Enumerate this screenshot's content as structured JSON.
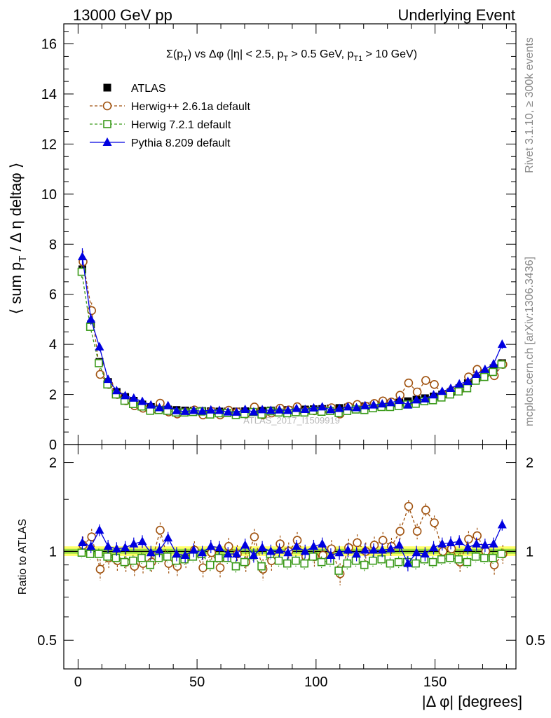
{
  "header": {
    "left": "13000 GeV pp",
    "right": "Underlying Event"
  },
  "side_labels": {
    "rivet": "Rivet 3.1.10, ≥ 300k events",
    "mcplots": "mcplots.cern.ch [arXiv:1306.3436]"
  },
  "watermark": "ATLAS_2017_I1509919",
  "colors": {
    "atlas": "#000000",
    "herwigpp": "#a0520f",
    "herwig7": "#3a9a1a",
    "pythia": "#0000e0",
    "band_outer": "#ffff66",
    "band_inner": "#99dd44"
  },
  "chart_data": [
    {
      "type": "scatter",
      "panel": "main",
      "title": "Σ(p_T) vs Δφ (|η| < 2.5, p_T > 0.5 GeV, p_T1 > 10 GeV)",
      "xlabel": "|Δ φ| [degrees]",
      "ylabel": "⟨ sum p_T / Δ η deltaφ ⟩",
      "xlim": [
        -6,
        184
      ],
      "ylim": [
        0,
        16.8
      ],
      "yticks": [
        0,
        2,
        4,
        6,
        8,
        10,
        12,
        14,
        16
      ],
      "xticks": [
        0,
        50,
        100,
        150
      ],
      "legend_position": "top-left",
      "x": [
        1.8,
        5.4,
        9.0,
        12.6,
        16.2,
        19.8,
        23.4,
        27.0,
        30.6,
        34.2,
        37.8,
        41.4,
        45.0,
        48.6,
        52.2,
        55.8,
        59.4,
        63.0,
        66.6,
        70.2,
        73.8,
        77.4,
        81.0,
        84.6,
        88.2,
        91.8,
        95.4,
        99.0,
        102.6,
        106.2,
        109.8,
        113.4,
        117.0,
        120.6,
        124.2,
        127.8,
        131.4,
        135.0,
        138.6,
        142.2,
        145.8,
        149.4,
        153.0,
        156.6,
        160.2,
        163.8,
        167.4,
        171.0,
        174.6,
        178.2
      ],
      "series": [
        {
          "name": "ATLAS",
          "marker": "square-filled",
          "values": [
            7.0,
            4.8,
            3.3,
            2.5,
            2.1,
            1.9,
            1.75,
            1.6,
            1.5,
            1.45,
            1.4,
            1.38,
            1.36,
            1.35,
            1.34,
            1.33,
            1.32,
            1.32,
            1.32,
            1.33,
            1.34,
            1.35,
            1.36,
            1.37,
            1.38,
            1.39,
            1.4,
            1.41,
            1.42,
            1.44,
            1.46,
            1.48,
            1.5,
            1.53,
            1.56,
            1.6,
            1.64,
            1.68,
            1.73,
            1.79,
            1.85,
            1.92,
            2.0,
            2.1,
            2.25,
            2.45,
            2.65,
            2.85,
            3.05,
            3.25
          ]
        },
        {
          "name": "Herwig++ 2.6.1a default",
          "marker": "circle-open",
          "values": [
            7.3,
            5.35,
            2.8,
            2.4,
            2.0,
            1.75,
            1.55,
            1.45,
            1.38,
            1.65,
            1.3,
            1.22,
            1.3,
            1.38,
            1.18,
            1.33,
            1.18,
            1.37,
            1.3,
            1.22,
            1.5,
            1.18,
            1.26,
            1.45,
            1.38,
            1.51,
            1.34,
            1.35,
            1.38,
            1.47,
            1.22,
            1.52,
            1.6,
            1.53,
            1.64,
            1.74,
            1.7,
            1.97,
            2.46,
            2.1,
            2.56,
            2.4,
            2.0,
            2.15,
            2.2,
            2.7,
            3.0,
            2.85,
            2.75,
            3.2
          ]
        },
        {
          "name": "Herwig 7.2.1 default",
          "marker": "square-open",
          "values": [
            6.9,
            4.7,
            3.25,
            2.4,
            2.0,
            1.75,
            1.62,
            1.52,
            1.35,
            1.38,
            1.35,
            1.28,
            1.28,
            1.3,
            1.32,
            1.2,
            1.25,
            1.26,
            1.18,
            1.22,
            1.3,
            1.2,
            1.33,
            1.28,
            1.25,
            1.29,
            1.28,
            1.35,
            1.31,
            1.34,
            1.26,
            1.34,
            1.4,
            1.38,
            1.45,
            1.5,
            1.5,
            1.54,
            1.6,
            1.63,
            1.73,
            1.77,
            1.88,
            2.0,
            2.12,
            2.25,
            2.55,
            2.7,
            2.9,
            3.2
          ]
        },
        {
          "name": "Pythia 8.209 default",
          "marker": "triangle-filled",
          "values": [
            7.5,
            5.0,
            3.9,
            2.6,
            2.15,
            1.95,
            1.85,
            1.72,
            1.58,
            1.47,
            1.55,
            1.35,
            1.32,
            1.36,
            1.33,
            1.38,
            1.36,
            1.3,
            1.29,
            1.4,
            1.3,
            1.39,
            1.36,
            1.38,
            1.36,
            1.44,
            1.4,
            1.46,
            1.5,
            1.39,
            1.44,
            1.5,
            1.47,
            1.55,
            1.58,
            1.62,
            1.67,
            1.76,
            1.58,
            1.78,
            1.82,
            1.98,
            2.12,
            2.24,
            2.42,
            2.52,
            2.8,
            3.0,
            3.22,
            4.0
          ]
        }
      ]
    },
    {
      "type": "scatter",
      "panel": "ratio",
      "ylabel": "Ratio to ATLAS",
      "xlabel": "|Δ φ| [degrees]",
      "xlim": [
        -6,
        184
      ],
      "ylim": [
        0.4,
        2.3
      ],
      "yticks": [
        0.5,
        1,
        2
      ],
      "ytick_labels": [
        "0.5",
        "1",
        "2"
      ],
      "x": [
        1.8,
        5.4,
        9.0,
        12.6,
        16.2,
        19.8,
        23.4,
        27.0,
        30.6,
        34.2,
        37.8,
        41.4,
        45.0,
        48.6,
        52.2,
        55.8,
        59.4,
        63.0,
        66.6,
        70.2,
        73.8,
        77.4,
        81.0,
        84.6,
        88.2,
        91.8,
        95.4,
        99.0,
        102.6,
        106.2,
        109.8,
        113.4,
        117.0,
        120.6,
        124.2,
        127.8,
        131.4,
        135.0,
        138.6,
        142.2,
        145.8,
        149.4,
        153.0,
        156.6,
        160.2,
        163.8,
        167.4,
        171.0,
        174.6,
        178.2
      ],
      "series": [
        {
          "name": "Herwig++ 2.6.1a default",
          "values": [
            1.05,
            1.12,
            0.87,
            0.95,
            0.93,
            0.92,
            0.89,
            0.91,
            0.92,
            1.18,
            0.91,
            0.89,
            0.95,
            1.01,
            0.88,
            0.99,
            0.88,
            1.04,
            0.98,
            0.92,
            1.12,
            0.87,
            0.93,
            1.06,
            1.0,
            1.09,
            0.96,
            0.96,
            0.97,
            1.02,
            0.84,
            1.03,
            1.07,
            1.0,
            1.05,
            1.09,
            1.04,
            1.17,
            1.42,
            1.17,
            1.38,
            1.25,
            1.0,
            1.02,
            0.92,
            1.1,
            1.13,
            1.0,
            0.9,
            0.98
          ]
        },
        {
          "name": "Herwig 7.2.1 default",
          "values": [
            0.99,
            0.98,
            0.98,
            0.96,
            0.95,
            0.92,
            0.93,
            0.95,
            0.9,
            0.95,
            0.96,
            0.93,
            0.94,
            0.96,
            0.98,
            0.9,
            0.95,
            0.95,
            0.89,
            0.92,
            0.97,
            0.89,
            0.98,
            0.93,
            0.91,
            0.93,
            0.91,
            0.96,
            0.92,
            0.93,
            0.86,
            0.91,
            0.93,
            0.9,
            0.93,
            0.94,
            0.91,
            0.92,
            0.92,
            0.91,
            0.94,
            0.92,
            0.94,
            0.95,
            0.94,
            0.92,
            0.96,
            0.95,
            0.95,
            0.98
          ]
        },
        {
          "name": "Pythia 8.209 default",
          "values": [
            1.07,
            1.04,
            1.18,
            1.04,
            1.02,
            1.03,
            1.06,
            1.08,
            0.99,
            1.01,
            1.11,
            0.98,
            0.97,
            1.01,
            0.99,
            1.04,
            1.03,
            0.98,
            0.98,
            1.05,
            0.97,
            1.03,
            1.0,
            1.01,
            0.99,
            1.04,
            1.0,
            1.04,
            1.06,
            0.97,
            0.99,
            1.01,
            0.98,
            1.01,
            1.01,
            1.01,
            1.02,
            1.05,
            0.91,
            0.99,
            0.98,
            1.03,
            1.06,
            1.07,
            1.08,
            1.03,
            1.06,
            1.05,
            1.06,
            1.23
          ]
        }
      ]
    }
  ]
}
